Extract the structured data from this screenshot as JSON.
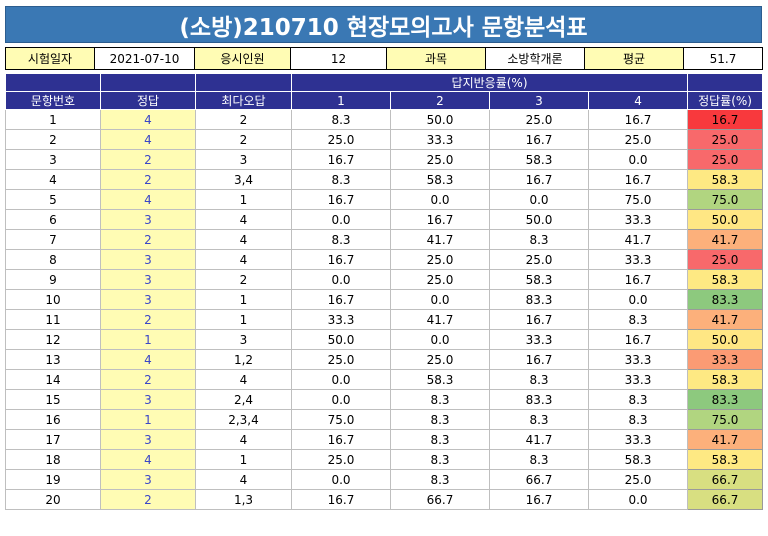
{
  "title": "(소방)210710 현장모의고사 문항분석표",
  "info": {
    "exam_date_label": "시험일자",
    "exam_date": "2021-07-10",
    "applicants_label": "응시인원",
    "applicants": "12",
    "subject_label": "과목",
    "subject": "소방학개론",
    "average_label": "평균",
    "average": "51.7"
  },
  "header": {
    "q_no": "문항번호",
    "answer": "정답",
    "most_wrong": "최다오답",
    "choice_rate": "답지반응률(%)",
    "c1": "1",
    "c2": "2",
    "c3": "3",
    "c4": "4",
    "correct_rate": "정답률(%)"
  },
  "rows": [
    [
      "1",
      "4",
      "2",
      "8.3",
      "50.0",
      "25.0",
      "16.7",
      "16.7"
    ],
    [
      "2",
      "4",
      "2",
      "25.0",
      "33.3",
      "16.7",
      "25.0",
      "25.0"
    ],
    [
      "3",
      "2",
      "3",
      "16.7",
      "25.0",
      "58.3",
      "0.0",
      "25.0"
    ],
    [
      "4",
      "2",
      "3,4",
      "8.3",
      "58.3",
      "16.7",
      "16.7",
      "58.3"
    ],
    [
      "5",
      "4",
      "1",
      "16.7",
      "0.0",
      "0.0",
      "75.0",
      "75.0"
    ],
    [
      "6",
      "3",
      "4",
      "0.0",
      "16.7",
      "50.0",
      "33.3",
      "50.0"
    ],
    [
      "7",
      "2",
      "4",
      "8.3",
      "41.7",
      "8.3",
      "41.7",
      "41.7"
    ],
    [
      "8",
      "3",
      "4",
      "16.7",
      "25.0",
      "25.0",
      "33.3",
      "25.0"
    ],
    [
      "9",
      "3",
      "2",
      "0.0",
      "25.0",
      "58.3",
      "16.7",
      "58.3"
    ],
    [
      "10",
      "3",
      "1",
      "16.7",
      "0.0",
      "83.3",
      "0.0",
      "83.3"
    ],
    [
      "11",
      "2",
      "1",
      "33.3",
      "41.7",
      "16.7",
      "8.3",
      "41.7"
    ],
    [
      "12",
      "1",
      "3",
      "50.0",
      "0.0",
      "33.3",
      "16.7",
      "50.0"
    ],
    [
      "13",
      "4",
      "1,2",
      "25.0",
      "25.0",
      "16.7",
      "33.3",
      "33.3"
    ],
    [
      "14",
      "2",
      "4",
      "0.0",
      "58.3",
      "8.3",
      "33.3",
      "58.3"
    ],
    [
      "15",
      "3",
      "2,4",
      "0.0",
      "8.3",
      "83.3",
      "8.3",
      "83.3"
    ],
    [
      "16",
      "1",
      "2,3,4",
      "75.0",
      "8.3",
      "8.3",
      "8.3",
      "75.0"
    ],
    [
      "17",
      "3",
      "4",
      "16.7",
      "8.3",
      "41.7",
      "33.3",
      "41.7"
    ],
    [
      "18",
      "4",
      "1",
      "25.0",
      "8.3",
      "8.3",
      "58.3",
      "58.3"
    ],
    [
      "19",
      "3",
      "4",
      "0.0",
      "8.3",
      "66.7",
      "25.0",
      "66.7"
    ],
    [
      "20",
      "2",
      "1,3",
      "16.7",
      "66.7",
      "16.7",
      "0.0",
      "66.7"
    ]
  ],
  "rate_colors": {
    "16.7": "#f8393d",
    "25.0": "#f8696b",
    "33.3": "#fb9b74",
    "41.7": "#fcb07b",
    "50.0": "#ffe784",
    "58.3": "#fee983",
    "66.7": "#d8df81",
    "75.0": "#b1d580",
    "83.3": "#8dc97e"
  }
}
